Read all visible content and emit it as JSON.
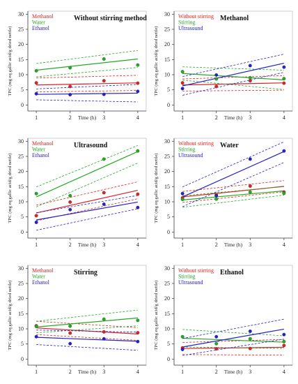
{
  "chart_data": [
    {
      "type": "scatter",
      "title": "Without stirring method",
      "xlabel": "Time (h)",
      "ylabel": "TPC (mg eq gallic acid/g dried nettle)",
      "xlim": [
        0.75,
        4.25
      ],
      "ylim": [
        -2,
        31
      ],
      "xticks": [
        1,
        2,
        3,
        4
      ],
      "yticks": [
        0,
        5,
        10,
        15,
        20,
        25,
        30
      ],
      "legend_position": "top-left",
      "regression": "linear fit with dashed confidence bands",
      "series": [
        {
          "name": "Methanol",
          "color": "#dd2222",
          "x": [
            1,
            2,
            3,
            4
          ],
          "y": [
            7.3,
            6.1,
            8.0,
            7.2
          ],
          "fit": [
            6.6,
            7.3
          ],
          "band_low": [
            4.3,
            4.8
          ],
          "band_high": [
            8.9,
            9.8
          ]
        },
        {
          "name": "Water",
          "color": "#22aa22",
          "x": [
            1,
            2,
            3,
            4
          ],
          "y": [
            11.3,
            12.3,
            15.2,
            13.2
          ],
          "fit": [
            11.5,
            15.2
          ],
          "band_low": [
            9.3,
            12.4
          ],
          "band_high": [
            13.7,
            18.0
          ]
        },
        {
          "name": "Ethanol",
          "color": "#2222cc",
          "x": [
            1,
            2,
            3,
            4
          ],
          "y": [
            3.7,
            3.4,
            3.5,
            4.5
          ],
          "fit": [
            3.5,
            3.9
          ],
          "band_low": [
            1.7,
            1.0
          ],
          "band_high": [
            5.3,
            6.8
          ]
        }
      ]
    },
    {
      "type": "scatter",
      "title": "Methanol",
      "xlabel": "Time (h)",
      "ylabel": "TPC (mg eq gallic acid/g dried nettle)",
      "xlim": [
        0.75,
        4.25
      ],
      "ylim": [
        -2,
        31
      ],
      "xticks": [
        1,
        2,
        3,
        4
      ],
      "yticks": [
        0,
        5,
        10,
        15,
        20,
        25,
        30
      ],
      "legend_position": "top-left",
      "regression": "linear fit with dashed confidence bands",
      "series": [
        {
          "name": "Without stirring",
          "color": "#dd2222",
          "x": [
            1,
            2,
            3,
            4
          ],
          "y": [
            7.3,
            6.1,
            8.0,
            7.2
          ],
          "fit": [
            6.6,
            7.3
          ],
          "band_low": [
            4.6,
            4.9
          ],
          "band_high": [
            8.6,
            9.7
          ]
        },
        {
          "name": "Stirring",
          "color": "#22aa22",
          "x": [
            1,
            2,
            3,
            4
          ],
          "y": [
            11.0,
            8.6,
            9.0,
            8.7
          ],
          "fit": [
            10.4,
            8.3
          ],
          "band_low": [
            8.2,
            5.1
          ],
          "band_high": [
            12.6,
            11.5
          ]
        },
        {
          "name": "Ultrasound",
          "color": "#2222cc",
          "x": [
            1,
            2,
            3,
            4
          ],
          "y": [
            5.4,
            9.9,
            13.0,
            12.5
          ],
          "fit": [
            6.3,
            13.8
          ],
          "band_low": [
            3.2,
            10.8
          ],
          "band_high": [
            9.4,
            16.8
          ]
        }
      ]
    },
    {
      "type": "scatter",
      "title": "Ultrasound",
      "xlabel": "Time (h)",
      "ylabel": "TPC (mg eq gallic acid/g dried nettle)",
      "xlim": [
        0.75,
        4.25
      ],
      "ylim": [
        -2,
        31
      ],
      "xticks": [
        1,
        2,
        3,
        4
      ],
      "yticks": [
        0,
        5,
        10,
        15,
        20,
        25,
        30
      ],
      "legend_position": "top-left",
      "regression": "linear fit with dashed confidence bands",
      "series": [
        {
          "name": "Methanol",
          "color": "#dd2222",
          "x": [
            1,
            2,
            3,
            4
          ],
          "y": [
            5.4,
            9.9,
            13.0,
            12.5
          ],
          "fit": [
            6.3,
            13.8
          ],
          "band_low": [
            3.7,
            11.0
          ],
          "band_high": [
            8.9,
            16.6
          ]
        },
        {
          "name": "Water",
          "color": "#22aa22",
          "x": [
            1,
            2,
            3,
            4
          ],
          "y": [
            12.7,
            12.0,
            24.1,
            26.8
          ],
          "fit": [
            11.6,
            26.6
          ],
          "band_low": [
            8.3,
            22.8
          ],
          "band_high": [
            14.9,
            28.6
          ]
        },
        {
          "name": "Ethanol",
          "color": "#2222cc",
          "x": [
            1,
            2,
            3,
            4
          ],
          "y": [
            3.2,
            7.4,
            9.2,
            8.1
          ],
          "fit": [
            4.0,
            9.9
          ],
          "band_low": [
            0.6,
            7.7
          ],
          "band_high": [
            6.4,
            12.1
          ]
        }
      ]
    },
    {
      "type": "scatter",
      "title": "Water",
      "xlabel": "Time (h)",
      "ylabel": "TPC (mg eq gallic acid/g dried nettle)",
      "xlim": [
        0.75,
        4.25
      ],
      "ylim": [
        -2,
        31
      ],
      "xticks": [
        1,
        2,
        3,
        4
      ],
      "yticks": [
        0,
        5,
        10,
        15,
        20,
        25,
        30
      ],
      "legend_position": "top-left",
      "regression": "linear fit with dashed confidence bands",
      "series": [
        {
          "name": "Without stirring",
          "color": "#dd2222",
          "x": [
            1,
            2,
            3,
            4
          ],
          "y": [
            11.3,
            12.3,
            15.2,
            13.2
          ],
          "fit": [
            11.6,
            15.1
          ],
          "band_low": [
            9.8,
            13.3
          ],
          "band_high": [
            13.4,
            17.0
          ]
        },
        {
          "name": "Stirring",
          "color": "#22aa22",
          "x": [
            1,
            2,
            3,
            4
          ],
          "y": [
            10.8,
            10.9,
            13.2,
            12.8
          ],
          "fit": [
            10.6,
            13.6
          ],
          "band_low": [
            8.2,
            12.2
          ],
          "band_high": [
            12.0,
            15.0
          ]
        },
        {
          "name": "Ultrasound",
          "color": "#2222cc",
          "x": [
            1,
            2,
            3,
            4
          ],
          "y": [
            12.7,
            12.0,
            24.1,
            26.8
          ],
          "fit": [
            11.6,
            26.6
          ],
          "band_low": [
            8.4,
            23.0
          ],
          "band_high": [
            14.9,
            29.8
          ]
        }
      ]
    },
    {
      "type": "scatter",
      "title": "Stirring",
      "xlabel": "Time (h)",
      "ylabel": "TPC (mg eq gallic acid/g dried nettle)",
      "xlim": [
        0.75,
        4.25
      ],
      "ylim": [
        -2,
        31
      ],
      "xticks": [
        1,
        2,
        3,
        4
      ],
      "yticks": [
        0,
        5,
        10,
        15,
        20,
        25,
        30
      ],
      "legend_position": "top-left",
      "regression": "linear fit with dashed confidence bands",
      "series": [
        {
          "name": "Methanol",
          "color": "#dd2222",
          "x": [
            1,
            2,
            3,
            4
          ],
          "y": [
            11.0,
            8.6,
            9.0,
            8.7
          ],
          "fit": [
            10.3,
            8.3
          ],
          "band_low": [
            8.1,
            6.2
          ],
          "band_high": [
            12.5,
            10.4
          ]
        },
        {
          "name": "Water",
          "color": "#22aa22",
          "x": [
            1,
            2,
            3,
            4
          ],
          "y": [
            10.8,
            10.9,
            13.2,
            12.8
          ],
          "fit": [
            10.6,
            13.6
          ],
          "band_low": [
            8.7,
            11.0
          ],
          "band_high": [
            12.5,
            16.2
          ]
        },
        {
          "name": "Ethanol",
          "color": "#2222cc",
          "x": [
            1,
            2,
            3,
            4
          ],
          "y": [
            7.4,
            5.1,
            6.7,
            5.8
          ],
          "fit": [
            7.2,
            5.9
          ],
          "band_low": [
            4.8,
            2.9
          ],
          "band_high": [
            9.6,
            8.9
          ]
        }
      ]
    },
    {
      "type": "scatter",
      "title": "Ethanol",
      "xlabel": "Time (h)",
      "ylabel": "TPC (mg eq gallic acid/g dried nettle)",
      "xlim": [
        0.75,
        4.25
      ],
      "ylim": [
        -2,
        31
      ],
      "xticks": [
        1,
        2,
        3,
        4
      ],
      "yticks": [
        0,
        5,
        10,
        15,
        20,
        25,
        30
      ],
      "legend_position": "top-left",
      "regression": "linear fit with dashed confidence bands",
      "series": [
        {
          "name": "Without stirring",
          "color": "#dd2222",
          "x": [
            1,
            2,
            3,
            4
          ],
          "y": [
            3.7,
            3.4,
            3.5,
            4.5
          ],
          "fit": [
            3.5,
            3.9
          ],
          "band_low": [
            1.5,
            1.3
          ],
          "band_high": [
            5.5,
            6.5
          ]
        },
        {
          "name": "Stirring",
          "color": "#22aa22",
          "x": [
            1,
            2,
            3,
            4
          ],
          "y": [
            7.4,
            5.1,
            6.7,
            5.8
          ],
          "fit": [
            6.9,
            5.6
          ],
          "band_low": [
            4.0,
            3.5
          ],
          "band_high": [
            9.8,
            7.7
          ]
        },
        {
          "name": "Ultrasound",
          "color": "#2222cc",
          "x": [
            1,
            2,
            3,
            4
          ],
          "y": [
            3.2,
            7.4,
            9.2,
            8.1
          ],
          "fit": [
            4.0,
            9.9
          ],
          "band_low": [
            1.2,
            6.6
          ],
          "band_high": [
            6.8,
            13.2
          ]
        }
      ]
    }
  ]
}
